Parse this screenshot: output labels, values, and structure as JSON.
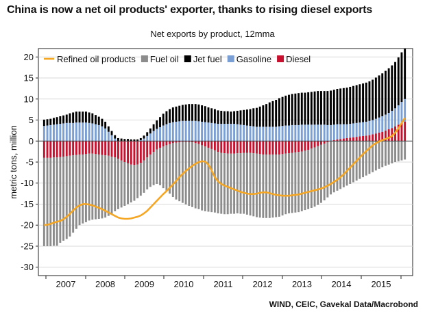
{
  "chart_data": {
    "type": "bar",
    "title": "China is now a net oil products' exporter, thanks to rising diesel exports",
    "subtitle": "Net exports by product, 12mma",
    "ylabel": "metric tons, million",
    "source": "WIND, CEIC, Gavekal Data/Macrobond",
    "ylim": [
      -32,
      22
    ],
    "yticks": [
      20,
      15,
      10,
      5,
      0,
      -5,
      -10,
      -15,
      -20,
      -25,
      -30
    ],
    "xlabels": [
      "2007",
      "2008",
      "2009",
      "2010",
      "2011",
      "2012",
      "2013",
      "2014",
      "2015"
    ],
    "x_start": "2006-07",
    "x_end": "2015-09",
    "legend_placement": "top-left",
    "series": [
      {
        "name": "Fuel oil",
        "color": "#8c8c8c",
        "kind": "bar",
        "values": [
          -21,
          -21,
          -21,
          -21,
          -21,
          -20.4,
          -20,
          -19.7,
          -19.2,
          -18.4,
          -17.6,
          -16.8,
          -16.4,
          -16.2,
          -15.9,
          -15.7,
          -15.5,
          -15.3,
          -15.1,
          -14.8,
          -14.3,
          -13.6,
          -12.8,
          -12,
          -11.2,
          -10.4,
          -9.7,
          -9,
          -8.5,
          -8,
          -7.8,
          -7.7,
          -7.6,
          -7.7,
          -7.9,
          -8.2,
          -8.9,
          -9.9,
          -10.9,
          -11.8,
          -12.8,
          -13.5,
          -14,
          -14.5,
          -14.9,
          -15.2,
          -15.4,
          -15.5,
          -15.5,
          -15.5,
          -15.4,
          -15.2,
          -15,
          -14.8,
          -14.6,
          -14.5,
          -14.5,
          -14.4,
          -14.3,
          -14.3,
          -14.3,
          -14.4,
          -14.5,
          -14.7,
          -14.9,
          -15,
          -15.1,
          -15.1,
          -15.1,
          -15.1,
          -15.1,
          -15,
          -14.9,
          -14.8,
          -14.6,
          -14.4,
          -14.3,
          -14.3,
          -14.3,
          -14.3,
          -14.2,
          -14.1,
          -14.1,
          -14.1,
          -14.1,
          -14,
          -13.8,
          -13.5,
          -13.1,
          -12.7,
          -12.2,
          -11.8,
          -11.4,
          -11,
          -10.6,
          -10.2,
          -9.8,
          -9.4,
          -9,
          -8.6,
          -8.2,
          -7.8,
          -7.4,
          -7,
          -6.6,
          -6.2,
          -5.9,
          -5.6,
          -5.3,
          -5,
          -4.8,
          -4.6,
          -4.4
        ]
      },
      {
        "name": "Diesel",
        "color": "#c8102e",
        "kind": "bar",
        "values": [
          -4,
          -4,
          -4,
          -3.9,
          -3.9,
          -3.8,
          -3.7,
          -3.6,
          -3.5,
          -3.4,
          -3.3,
          -3.2,
          -3.2,
          -3.1,
          -3,
          -3,
          -3.1,
          -3.2,
          -3.3,
          -3.4,
          -3.5,
          -3.7,
          -3.9,
          -4.2,
          -4.6,
          -5,
          -5.3,
          -5.6,
          -5.7,
          -5.6,
          -5.2,
          -4.6,
          -3.9,
          -3.2,
          -2.6,
          -2,
          -1.6,
          -1.3,
          -1,
          -0.7,
          -0.5,
          -0.4,
          -0.3,
          -0.2,
          -0.2,
          -0.2,
          -0.3,
          -0.5,
          -0.7,
          -1,
          -1.3,
          -1.6,
          -1.9,
          -2.2,
          -2.6,
          -2.8,
          -2.9,
          -3,
          -3,
          -3,
          -2.9,
          -2.9,
          -2.8,
          -2.8,
          -2.8,
          -2.9,
          -3,
          -3.1,
          -3.2,
          -3.2,
          -3.2,
          -3.2,
          -3.2,
          -3.2,
          -3.1,
          -3,
          -2.9,
          -2.8,
          -2.7,
          -2.6,
          -2.5,
          -2.3,
          -2.1,
          -1.8,
          -1.5,
          -1.2,
          -0.9,
          -0.6,
          -0.3,
          0,
          0.2,
          0.4,
          0.5,
          0.6,
          0.7,
          0.8,
          0.9,
          1,
          1.1,
          1.2,
          1.3,
          1.4,
          1.6,
          1.8,
          2,
          2.2,
          2.5,
          2.8,
          3.1,
          3.5,
          3.9,
          4.3,
          4.6
        ]
      },
      {
        "name": "Gasoline",
        "color": "#7a9fd4",
        "kind": "bar",
        "values": [
          3.6,
          3.7,
          3.8,
          3.9,
          4,
          4.1,
          4.2,
          4.3,
          4.3,
          4.3,
          4.4,
          4.4,
          4.4,
          4.4,
          4.3,
          4.2,
          4,
          3.8,
          3.5,
          3,
          2.2,
          1.4,
          0.6,
          0,
          0,
          0,
          0,
          0,
          0,
          0,
          0.2,
          0.6,
          1.2,
          1.8,
          2.4,
          2.9,
          3.3,
          3.7,
          4,
          4.3,
          4.5,
          4.6,
          4.7,
          4.8,
          4.8,
          4.8,
          4.8,
          4.8,
          4.7,
          4.6,
          4.5,
          4.4,
          4.3,
          4.2,
          4.1,
          4.1,
          4.1,
          4.1,
          4.1,
          4.1,
          4,
          3.9,
          3.8,
          3.7,
          3.6,
          3.5,
          3.4,
          3.4,
          3.4,
          3.4,
          3.4,
          3.4,
          3.4,
          3.5,
          3.6,
          3.7,
          3.7,
          3.8,
          3.8,
          3.8,
          3.9,
          3.9,
          3.9,
          3.9,
          3.9,
          3.9,
          3.9,
          3.9,
          3.8,
          3.8,
          3.7,
          3.6,
          3.5,
          3.4,
          3.3,
          3.3,
          3.3,
          3.3,
          3.3,
          3.3,
          3.3,
          3.4,
          3.4,
          3.5,
          3.6,
          3.7,
          3.8,
          3.9,
          4.1,
          4.3,
          4.6,
          5,
          5.4
        ]
      },
      {
        "name": "Jet fuel",
        "color": "#000000",
        "kind": "bar",
        "values": [
          1.5,
          1.5,
          1.5,
          1.6,
          1.7,
          1.8,
          1.9,
          2,
          2.3,
          2.5,
          2.6,
          2.6,
          2.6,
          2.6,
          2.5,
          2.4,
          2.2,
          2,
          1.8,
          1.6,
          1.3,
          1,
          0.8,
          0.7,
          0.6,
          0.5,
          0.5,
          0.4,
          0.4,
          0.4,
          0.5,
          0.7,
          0.9,
          1.2,
          1.6,
          2,
          2.4,
          2.8,
          3.1,
          3.3,
          3.5,
          3.6,
          3.7,
          3.8,
          3.9,
          4,
          4,
          4,
          4,
          3.9,
          3.8,
          3.6,
          3.5,
          3.4,
          3.2,
          3.1,
          3,
          3,
          2.9,
          3,
          3.2,
          3.4,
          3.6,
          3.8,
          4,
          4.3,
          4.5,
          4.8,
          5.1,
          5.4,
          5.8,
          6.1,
          6.4,
          6.7,
          6.9,
          7.1,
          7.3,
          7.4,
          7.5,
          7.6,
          7.6,
          7.6,
          7.7,
          7.8,
          7.9,
          8,
          8,
          8,
          8.1,
          8.2,
          8.3,
          8.4,
          8.5,
          8.6,
          8.7,
          8.8,
          8.9,
          9,
          9.1,
          9.2,
          9.3,
          9.4,
          9.6,
          9.8,
          10,
          10.2,
          10.4,
          10.6,
          10.8,
          11,
          11.4,
          11.8,
          12
        ]
      },
      {
        "name": "Refined oil products",
        "color": "#f5a623",
        "kind": "line",
        "values": [
          -20,
          -19.9,
          -19.7,
          -19.4,
          -19.2,
          -19,
          -18.6,
          -18,
          -17.3,
          -16.5,
          -15.8,
          -15.3,
          -15,
          -15,
          -15.1,
          -15.3,
          -15.6,
          -15.9,
          -16.2,
          -16.6,
          -17,
          -17.4,
          -17.8,
          -18.2,
          -18.4,
          -18.5,
          -18.5,
          -18.4,
          -18.2,
          -18,
          -17.7,
          -17.2,
          -16.6,
          -15.8,
          -15,
          -14.2,
          -13.4,
          -12.6,
          -11.9,
          -11.1,
          -10.3,
          -9.5,
          -8.6,
          -7.8,
          -7.1,
          -6.5,
          -5.9,
          -5.4,
          -5,
          -4.8,
          -4.9,
          -5.6,
          -7,
          -8.6,
          -9.6,
          -10.2,
          -10.6,
          -10.9,
          -11.2,
          -11.5,
          -11.8,
          -12.1,
          -12.3,
          -12.5,
          -12.6,
          -12.6,
          -12.5,
          -12.3,
          -12.2,
          -12.2,
          -12.4,
          -12.6,
          -12.8,
          -12.9,
          -13,
          -13,
          -13,
          -12.9,
          -12.8,
          -12.7,
          -12.5,
          -12.3,
          -12.1,
          -11.9,
          -11.7,
          -11.5,
          -11.3,
          -11,
          -10.6,
          -10.2,
          -9.7,
          -9.2,
          -8.6,
          -7.9,
          -7.1,
          -6.3,
          -5.5,
          -4.7,
          -3.9,
          -3.1,
          -2.4,
          -1.7,
          -1,
          -0.5,
          -0.1,
          0.2,
          0.5,
          0.8,
          1.2,
          2,
          3,
          4.3,
          5.5
        ]
      }
    ]
  }
}
